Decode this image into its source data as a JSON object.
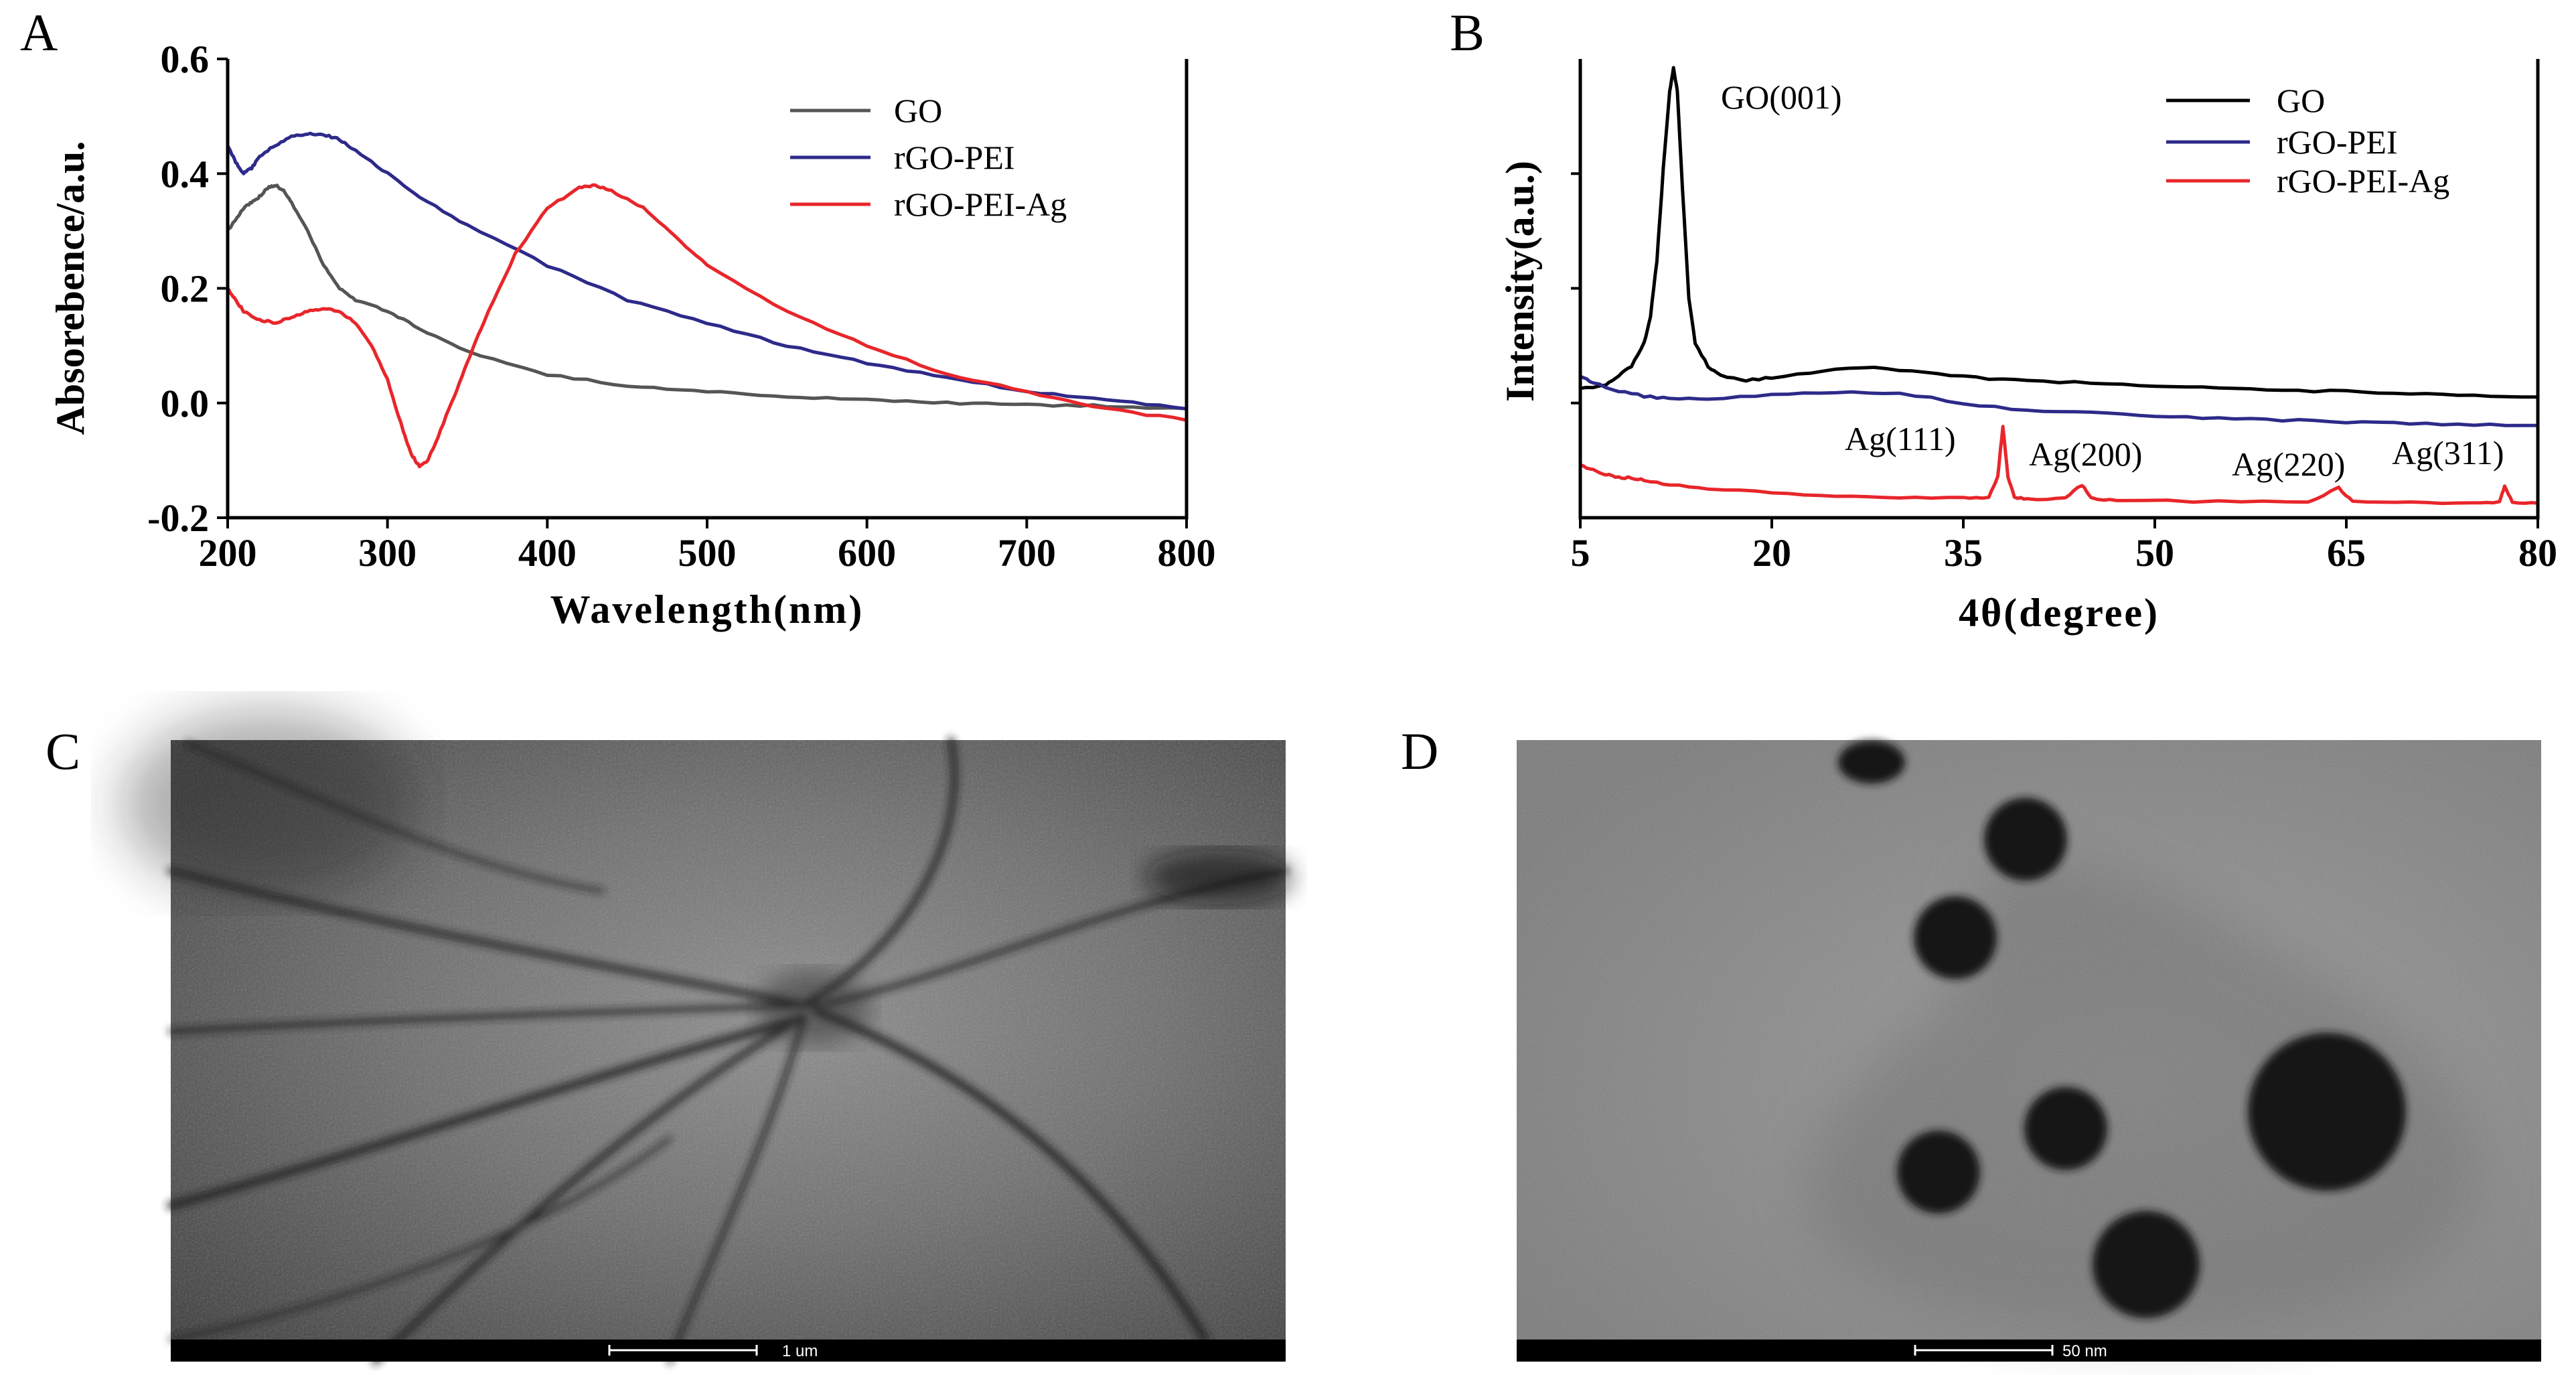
{
  "panels": {
    "a": "A",
    "b": "B",
    "c": "C",
    "d": "D"
  },
  "chart_data": [
    {
      "type": "line",
      "panel": "A",
      "xlabel": "Wavelength(nm)",
      "ylabel": "Absorebence/a.u.",
      "xlim": [
        200,
        800
      ],
      "ylim": [
        -0.2,
        0.6
      ],
      "x_ticks": [
        "200",
        "300",
        "400",
        "500",
        "600",
        "700",
        "800"
      ],
      "y_ticks": [
        "-0.2",
        "0.0",
        "0.2",
        "0.4",
        "0.6"
      ],
      "legend": "top-right",
      "series": [
        {
          "name": "GO",
          "color": "#555555",
          "x": [
            200,
            205,
            210,
            215,
            220,
            225,
            230,
            235,
            240,
            250,
            260,
            270,
            280,
            300,
            320,
            350,
            400,
            450,
            500,
            550,
            600,
            650,
            700,
            750,
            800
          ],
          "y": [
            0.3,
            0.32,
            0.34,
            0.35,
            0.36,
            0.375,
            0.38,
            0.37,
            0.35,
            0.3,
            0.24,
            0.2,
            0.18,
            0.16,
            0.13,
            0.09,
            0.05,
            0.03,
            0.02,
            0.012,
            0.005,
            0.0,
            -0.003,
            -0.005,
            -0.01
          ]
        },
        {
          "name": "rGO-PEI",
          "color": "#2e2a8a",
          "x": [
            200,
            205,
            210,
            215,
            220,
            230,
            240,
            250,
            260,
            270,
            280,
            300,
            320,
            350,
            400,
            450,
            500,
            550,
            600,
            650,
            700,
            750,
            800
          ],
          "y": [
            0.45,
            0.42,
            0.4,
            0.41,
            0.43,
            0.45,
            0.465,
            0.47,
            0.468,
            0.46,
            0.44,
            0.4,
            0.36,
            0.31,
            0.24,
            0.18,
            0.14,
            0.1,
            0.07,
            0.045,
            0.02,
            0.005,
            -0.01
          ]
        },
        {
          "name": "rGO-PEI-Ag",
          "color": "#e8262b",
          "x": [
            200,
            205,
            210,
            220,
            230,
            240,
            250,
            260,
            270,
            280,
            290,
            300,
            310,
            315,
            320,
            325,
            330,
            340,
            350,
            360,
            380,
            400,
            420,
            430,
            440,
            460,
            480,
            500,
            550,
            600,
            650,
            700,
            750,
            800
          ],
          "y": [
            0.2,
            0.18,
            0.16,
            0.145,
            0.14,
            0.15,
            0.16,
            0.165,
            0.16,
            0.14,
            0.1,
            0.04,
            -0.05,
            -0.09,
            -0.11,
            -0.1,
            -0.07,
            0.0,
            0.07,
            0.14,
            0.26,
            0.34,
            0.375,
            0.38,
            0.37,
            0.34,
            0.29,
            0.24,
            0.16,
            0.1,
            0.05,
            0.02,
            -0.01,
            -0.03
          ]
        }
      ]
    },
    {
      "type": "line",
      "panel": "B",
      "xlabel": "4θ(degree)",
      "ylabel": "Intensity(a.u.)",
      "xlim": [
        5,
        80
      ],
      "ylim": [
        0,
        100
      ],
      "x_ticks": [
        "5",
        "20",
        "35",
        "50",
        "65",
        "80"
      ],
      "legend": "top-right",
      "series": [
        {
          "name": "GO",
          "color": "#000000",
          "x": [
            5,
            7,
            8,
            9,
            10,
            10.5,
            11,
            11.5,
            12,
            12.3,
            12.6,
            13,
            13.5,
            14,
            15,
            16,
            18,
            20,
            24,
            28,
            32,
            36,
            40,
            45,
            50,
            55,
            60,
            65,
            70,
            75,
            80
          ],
          "y": [
            28,
            29,
            31,
            33,
            38,
            44,
            56,
            76,
            93,
            98,
            93,
            72,
            48,
            38,
            33,
            31,
            30,
            30.5,
            32,
            33,
            31.5,
            30.5,
            29.8,
            29.5,
            28.8,
            28.3,
            27.8,
            27.5,
            27,
            26.5,
            26.3
          ]
        },
        {
          "name": "rGO-PEI",
          "color": "#2e2a8a",
          "x": [
            5,
            6,
            8,
            10,
            12,
            15,
            20,
            25,
            30,
            35,
            40,
            45,
            50,
            55,
            60,
            65,
            70,
            75,
            80
          ],
          "y": [
            31,
            29.5,
            27.5,
            26.5,
            26,
            26,
            26.8,
            27.4,
            27.2,
            25,
            23.3,
            22.8,
            22.2,
            21.7,
            21.3,
            20.9,
            20.6,
            20.3,
            20.1
          ]
        },
        {
          "name": "rGO-PEI-Ag",
          "color": "#e8262b",
          "x": [
            5,
            6,
            7,
            8,
            9,
            10,
            12,
            15,
            20,
            25,
            30,
            35,
            37,
            37.7,
            38.1,
            38.5,
            39,
            40,
            43,
            44.3,
            45,
            47,
            55,
            62,
            64.4,
            65.5,
            70,
            75,
            77,
            77.4,
            78,
            80
          ],
          "y": [
            11.5,
            10.5,
            9.5,
            8.8,
            8.7,
            8.2,
            7.2,
            6.3,
            5.5,
            4.8,
            4.3,
            4.2,
            4.5,
            9,
            20,
            9,
            4.5,
            4.1,
            4.2,
            7.2,
            4.2,
            3.8,
            3.5,
            3.4,
            6.5,
            3.4,
            3.3,
            3.2,
            3.5,
            7,
            3.3,
            3.2
          ]
        }
      ],
      "annotations": [
        "GO(001)",
        "Ag(111)",
        "Ag(200)",
        "Ag(220)",
        "Ag(311)"
      ]
    }
  ],
  "images": {
    "c_scale_label": "1 um",
    "d_scale_label": "50 nm"
  }
}
